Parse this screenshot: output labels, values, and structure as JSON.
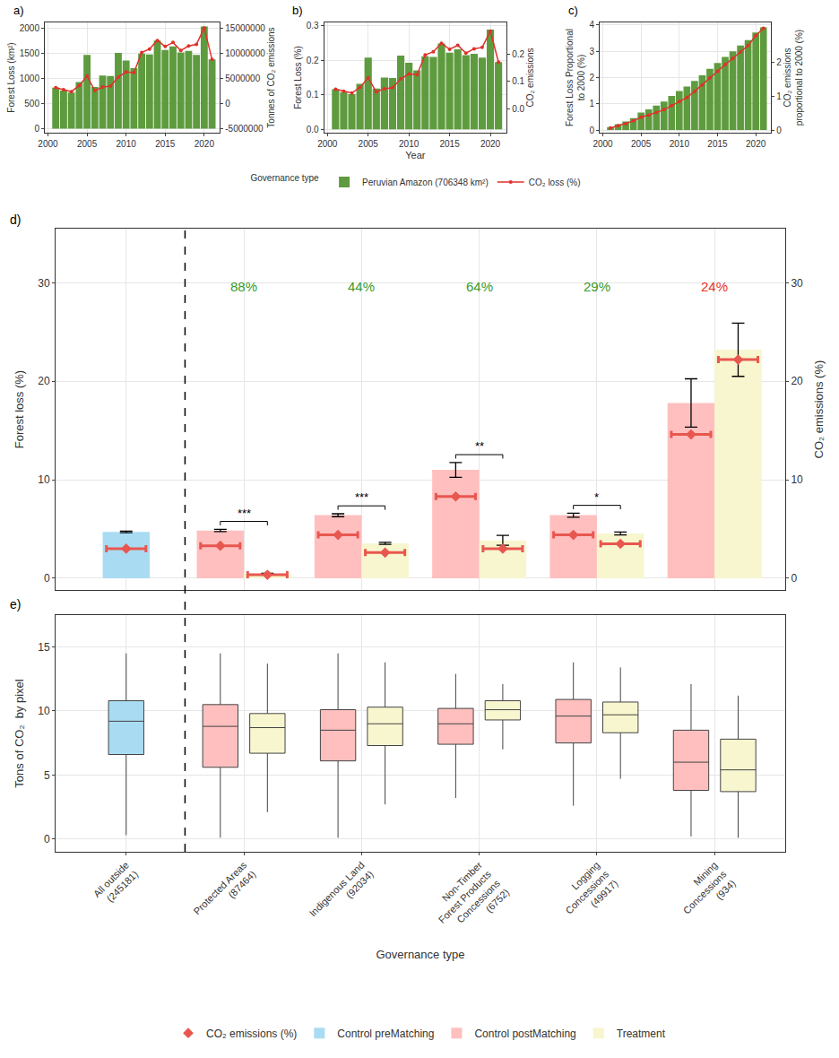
{
  "chart_data": [
    {
      "type": "bar",
      "label": "a)",
      "x": [
        2001,
        2002,
        2003,
        2004,
        2005,
        2006,
        2007,
        2008,
        2009,
        2010,
        2011,
        2012,
        2013,
        2014,
        2015,
        2016,
        2017,
        2018,
        2019,
        2020,
        2021
      ],
      "xlim": [
        1999.6,
        2022
      ],
      "xticks": [
        2000,
        2005,
        2010,
        2015,
        2020
      ],
      "y_label": "Forest Loss (km²)",
      "y2_label": "Tonnes of CO₂ emissions",
      "ylim": [
        -80,
        2120
      ],
      "yticks": [
        0,
        500,
        1000,
        1500,
        2000
      ],
      "y2lim": [
        -5800000,
        16200000
      ],
      "y2ticks": [
        -5000000,
        0,
        5000000,
        10000000,
        15000000
      ],
      "grid": true,
      "legend": "bottom",
      "legend_title": "Governance type",
      "series": [
        {
          "name": "Peruvian Amazon (706348 km²)",
          "type": "bar",
          "color": "#5e9b3e",
          "values": [
            820,
            760,
            720,
            930,
            1470,
            830,
            1060,
            1050,
            1510,
            1360,
            1210,
            1500,
            1480,
            1760,
            1570,
            1640,
            1520,
            1550,
            1470,
            2040,
            1380
          ]
        },
        {
          "name": "CO₂ loss (%)",
          "type": "line",
          "axis": "y2",
          "color": "#e0312b",
          "marker": "circle",
          "values": [
            3200000,
            2800000,
            2400000,
            3600000,
            5500000,
            2600000,
            3300000,
            3500000,
            5300000,
            6300000,
            6200000,
            10200000,
            10900000,
            12600000,
            11400000,
            12200000,
            10600000,
            11500000,
            11800000,
            15100000,
            8800000
          ]
        }
      ]
    },
    {
      "type": "bar",
      "label": "b)",
      "x": [
        2001,
        2002,
        2003,
        2004,
        2005,
        2006,
        2007,
        2008,
        2009,
        2010,
        2011,
        2012,
        2013,
        2014,
        2015,
        2016,
        2017,
        2018,
        2019,
        2020,
        2021
      ],
      "xlim": [
        1999.6,
        2022
      ],
      "xticks": [
        2000,
        2005,
        2010,
        2015,
        2020
      ],
      "x_label": "Year",
      "y_label": "Forest Loss (%)",
      "y2_label": "CO₂ emissions",
      "ylim": [
        -0.01,
        0.31
      ],
      "yticks": [
        {
          "value": 0,
          "label": "0.0"
        },
        0.1,
        0.2,
        0.3
      ],
      "y2lim": [
        -0.089,
        0.317
      ],
      "y2ticks": [
        {
          "value": 0,
          "label": "0.0"
        },
        0.1,
        0.2
      ],
      "grid": true,
      "series": [
        {
          "name": "Peruvian Amazon (706348 km²)",
          "type": "bar",
          "color": "#5e9b3e",
          "values": [
            0.116,
            0.108,
            0.102,
            0.132,
            0.208,
            0.118,
            0.15,
            0.149,
            0.214,
            0.193,
            0.171,
            0.212,
            0.21,
            0.249,
            0.222,
            0.232,
            0.215,
            0.219,
            0.208,
            0.289,
            0.195
          ]
        },
        {
          "name": "CO₂ loss (%)",
          "type": "line",
          "axis": "y2",
          "color": "#e0312b",
          "marker": "circle",
          "values": [
            0.071,
            0.064,
            0.057,
            0.078,
            0.113,
            0.061,
            0.073,
            0.077,
            0.109,
            0.127,
            0.125,
            0.197,
            0.209,
            0.24,
            0.218,
            0.233,
            0.204,
            0.22,
            0.225,
            0.285,
            0.171
          ]
        }
      ]
    },
    {
      "type": "bar",
      "label": "c)",
      "x": [
        2001,
        2002,
        2003,
        2004,
        2005,
        2006,
        2007,
        2008,
        2009,
        2010,
        2011,
        2012,
        2013,
        2014,
        2015,
        2016,
        2017,
        2018,
        2019,
        2020,
        2021
      ],
      "xlim": [
        1999.6,
        2022
      ],
      "xticks": [
        2000,
        2005,
        2010,
        2015,
        2020
      ],
      "y_label": "Forest Loss Proportional to 2000 (%)",
      "y2_label": "CO₂ emissions proportional to 2000 (%)",
      "ylim": [
        -0.1,
        4.1
      ],
      "yticks": [
        0,
        1,
        2,
        3,
        4
      ],
      "y2lim": [
        -0.077,
        3.17
      ],
      "y2ticks": [
        0,
        1,
        2
      ],
      "grid": true,
      "series": [
        {
          "name": "Peruvian Amazon (706348 km²)",
          "type": "bar",
          "color": "#5e9b3e",
          "values": [
            0.116,
            0.224,
            0.326,
            0.458,
            0.666,
            0.784,
            0.934,
            1.083,
            1.297,
            1.49,
            1.661,
            1.873,
            2.083,
            2.332,
            2.554,
            2.786,
            3.001,
            3.22,
            3.428,
            3.717,
            3.912
          ]
        },
        {
          "name": "CO₂ loss (%)",
          "type": "line",
          "axis": "y2",
          "color": "#e0312b",
          "marker": "circle",
          "values": [
            0.06,
            0.13,
            0.19,
            0.27,
            0.38,
            0.44,
            0.52,
            0.6,
            0.72,
            0.84,
            0.96,
            1.14,
            1.33,
            1.54,
            1.73,
            1.93,
            2.11,
            2.3,
            2.49,
            2.78,
            3.0
          ]
        }
      ]
    },
    {
      "type": "bar",
      "label": "d)",
      "categories": [
        "All outside (245181)",
        "Protected Areas (87464)",
        "Indigenous Land (92034)",
        "Non-Timber Forest Products Concessions (6752)",
        "Logging Concessions (49917)",
        "Mining Concessions (934)"
      ],
      "y_label": "Forest loss (%)",
      "y2_label": "CO₂ emissions (%)",
      "ylim": [
        -1.2,
        35.5
      ],
      "yticks": [
        0,
        10,
        20,
        30
      ],
      "y2lim": [
        -1.2,
        35.5
      ],
      "y2ticks": [
        0,
        10,
        20,
        30
      ],
      "grid": true,
      "legend": "bottom",
      "series": [
        {
          "name": "Control preMatching",
          "color": "#a9dcf3",
          "values": [
            4.7,
            null,
            null,
            null,
            null,
            null
          ],
          "errors": [
            0.08,
            null,
            null,
            null,
            null,
            null
          ],
          "co2": [
            3.0,
            null,
            null,
            null,
            null,
            null
          ]
        },
        {
          "name": "Control postMatching",
          "color": "#ffbfbf",
          "values": [
            null,
            4.85,
            6.4,
            11.0,
            6.4,
            17.8
          ],
          "errors": [
            null,
            0.12,
            0.15,
            0.75,
            0.2,
            2.45
          ],
          "co2": [
            null,
            3.3,
            4.4,
            8.3,
            4.4,
            14.6
          ]
        },
        {
          "name": "Treatment",
          "color": "#f8f6cf",
          "values": [
            null,
            0.45,
            3.55,
            3.85,
            4.55,
            23.2
          ],
          "errors": [
            null,
            0.06,
            0.1,
            0.5,
            0.15,
            2.7
          ],
          "co2": [
            null,
            0.35,
            2.6,
            3.0,
            3.5,
            22.2
          ]
        }
      ],
      "co2_series": {
        "name": "CO₂ emissions (%)",
        "type": "scatter",
        "axis": "y2",
        "color": "#e8574f",
        "marker": "diamond"
      },
      "significance": [
        null,
        "***",
        "***",
        "**",
        "*",
        null
      ],
      "annotations": [
        {
          "category": "Protected Areas (87464)",
          "text": "88%",
          "color": "#3a9a2a"
        },
        {
          "category": "Indigenous Land (92034)",
          "text": "44%",
          "color": "#3a9a2a"
        },
        {
          "category": "Non-Timber Forest Products Concessions (6752)",
          "text": "64%",
          "color": "#3a9a2a"
        },
        {
          "category": "Logging Concessions (49917)",
          "text": "29%",
          "color": "#3a9a2a"
        },
        {
          "category": "Mining Concessions (934)",
          "text": "24%",
          "color": "#e83228"
        }
      ]
    },
    {
      "type": "box",
      "label": "e)",
      "categories": [
        "All outside (245181)",
        "Protected Areas (87464)",
        "Indigenous Land (92034)",
        "Non-Timber Forest Products Concessions (6752)",
        "Logging Concessions (49917)",
        "Mining Concessions (934)"
      ],
      "x_label": "Governance type",
      "y_label": "Tons of CO₂  by pixel",
      "ylim": [
        -1,
        17.5
      ],
      "yticks": [
        0,
        5,
        10,
        15
      ],
      "grid": true,
      "series": [
        {
          "name": "Control preMatching",
          "color": "#a9dcf3",
          "lowerfence": [
            0.3,
            null,
            null,
            null,
            null,
            null
          ],
          "q1": [
            6.6,
            null,
            null,
            null,
            null,
            null
          ],
          "median": [
            9.2,
            null,
            null,
            null,
            null,
            null
          ],
          "q3": [
            10.8,
            null,
            null,
            null,
            null,
            null
          ],
          "upperfence": [
            14.5,
            null,
            null,
            null,
            null,
            null
          ]
        },
        {
          "name": "Control postMatching",
          "color": "#ffbfbf",
          "lowerfence": [
            null,
            0.1,
            0.1,
            3.2,
            2.6,
            0.2
          ],
          "q1": [
            null,
            5.6,
            6.1,
            7.4,
            7.5,
            3.8
          ],
          "median": [
            null,
            8.8,
            8.5,
            9.0,
            9.6,
            6.0
          ],
          "q3": [
            null,
            10.5,
            10.1,
            10.2,
            10.9,
            8.5
          ],
          "upperfence": [
            null,
            14.5,
            14.5,
            12.9,
            13.8,
            12.1
          ]
        },
        {
          "name": "Treatment",
          "color": "#f8f6cf",
          "lowerfence": [
            null,
            2.1,
            2.7,
            7.0,
            4.7,
            0.1
          ],
          "q1": [
            null,
            6.7,
            7.3,
            9.3,
            8.3,
            3.7
          ],
          "median": [
            null,
            8.7,
            9.0,
            10.1,
            9.7,
            5.4
          ],
          "q3": [
            null,
            9.8,
            10.3,
            10.8,
            10.7,
            7.8
          ],
          "upperfence": [
            null,
            13.7,
            13.8,
            12.1,
            13.4,
            11.2
          ]
        }
      ]
    }
  ]
}
